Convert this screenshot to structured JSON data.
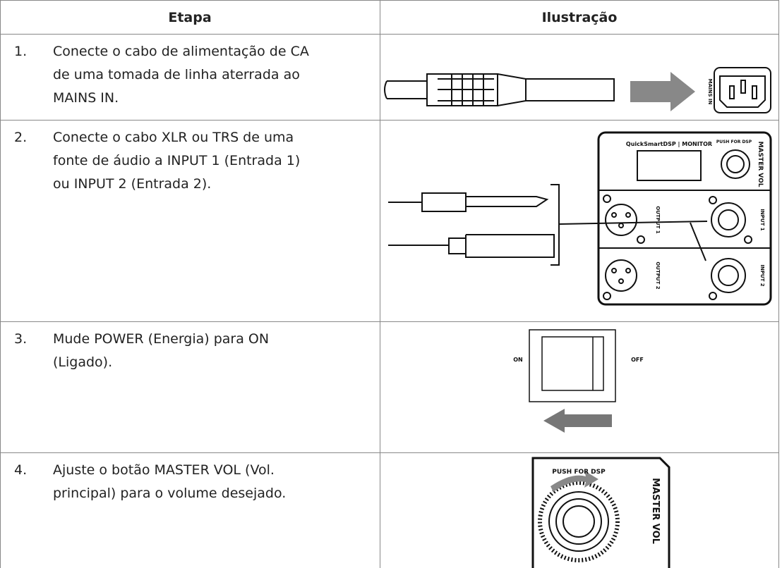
{
  "table": {
    "header": [
      "Etapa",
      "Ilustração"
    ],
    "rows": [
      {
        "number": "1.",
        "lines": [
          "Conecte o cabo de alimentação de CA",
          "de uma tomada de linha aterrada ao",
          "MAINS IN."
        ],
        "illustration": [
          "MAINS IN"
        ]
      },
      {
        "number": "2.",
        "lines": [
          "Conecte o cabo XLR ou TRS de uma",
          "fonte de áudio a INPUT 1 (Entrada 1)",
          "ou INPUT 2 (Entrada 2)."
        ],
        "illustration": [
          "QuickSmartDSP | MONITOR",
          "PUSH FOR DSP",
          "MASTER VOL",
          "OUTPUT 1",
          "INPUT 1",
          "OUTPUT 2",
          "INPUT 2"
        ]
      },
      {
        "number": "3.",
        "lines": [
          "Mude POWER (Energia) para ON",
          "(Ligado)."
        ],
        "illustration": [
          "ON",
          "OFF"
        ]
      },
      {
        "number": "4.",
        "lines": [
          "Ajuste o botão MASTER VOL (Vol.",
          "principal) para o volume desejado."
        ],
        "illustration": [
          "PUSH FOR DSP",
          "MASTER VOL"
        ]
      }
    ]
  }
}
